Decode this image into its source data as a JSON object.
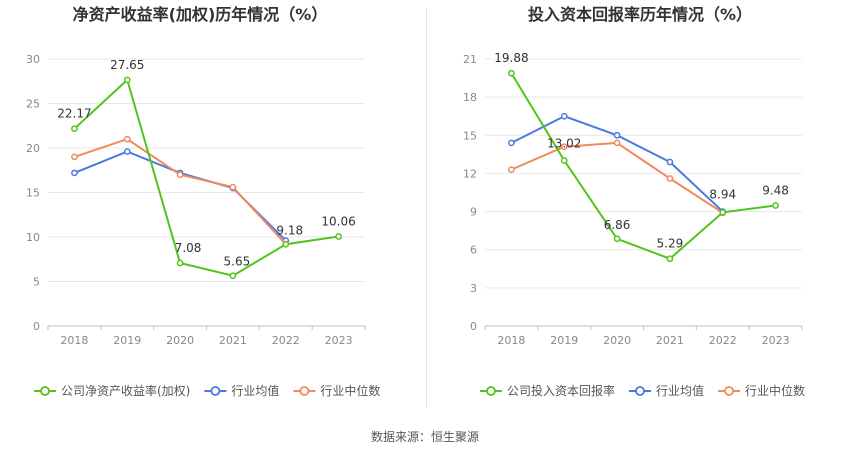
{
  "source_text": "数据来源：恒生聚源",
  "chart_data": [
    {
      "type": "line",
      "title": "净资产收益率(加权)历年情况（%）",
      "categories": [
        "2018",
        "2019",
        "2020",
        "2021",
        "2022",
        "2023"
      ],
      "ylim": [
        0,
        30
      ],
      "yticks": [
        0,
        5,
        10,
        15,
        20,
        25,
        30
      ],
      "grid": true,
      "legend_position": "bottom",
      "series": [
        {
          "name": "公司净资产收益率(加权)",
          "color": "#52c41a",
          "values": [
            22.17,
            27.65,
            7.08,
            5.65,
            9.18,
            10.06
          ],
          "labels": [
            "22.17",
            "27.65",
            "7.08",
            "5.65",
            "9.18",
            "10.06"
          ]
        },
        {
          "name": "行业均值",
          "color": "#4a79e0",
          "values": [
            17.2,
            19.6,
            17.2,
            15.5,
            9.6,
            null
          ]
        },
        {
          "name": "行业中位数",
          "color": "#f08a5d",
          "values": [
            19.0,
            21.0,
            17.0,
            15.6,
            9.2,
            null
          ]
        }
      ]
    },
    {
      "type": "line",
      "title": "投入资本回报率历年情况（%）",
      "categories": [
        "2018",
        "2019",
        "2020",
        "2021",
        "2022",
        "2023"
      ],
      "ylim": [
        0,
        21
      ],
      "yticks": [
        0,
        3,
        6,
        9,
        12,
        15,
        18,
        21
      ],
      "grid": true,
      "legend_position": "bottom",
      "series": [
        {
          "name": "公司投入资本回报率",
          "color": "#52c41a",
          "values": [
            19.88,
            13.02,
            6.86,
            5.29,
            8.94,
            9.48
          ],
          "labels": [
            "19.88",
            "13.02",
            "6.86",
            "5.29",
            "8.94",
            "9.48"
          ]
        },
        {
          "name": "行业均值",
          "color": "#4a79e0",
          "values": [
            14.4,
            16.5,
            15.0,
            12.9,
            9.0,
            null
          ]
        },
        {
          "name": "行业中位数",
          "color": "#f08a5d",
          "values": [
            12.3,
            14.1,
            14.4,
            11.6,
            8.9,
            null
          ]
        }
      ]
    }
  ]
}
